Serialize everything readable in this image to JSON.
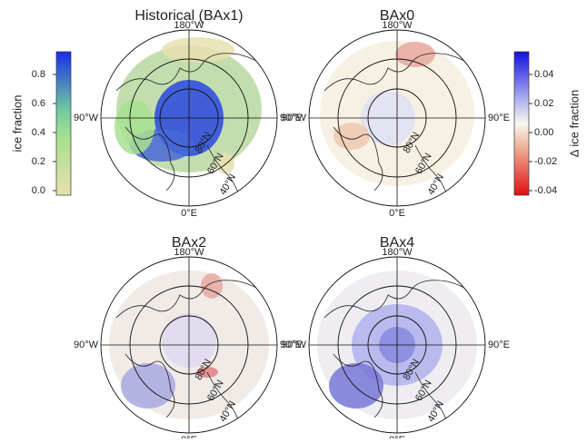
{
  "panels": [
    {
      "title": "Historical (BAx1)"
    },
    {
      "title": "BAx0"
    },
    {
      "title": "BAx2"
    },
    {
      "title": "BAx4"
    }
  ],
  "lon_labels": {
    "top": "180°W",
    "left": "90°W",
    "right": "90°E",
    "bottom": "0°E"
  },
  "lat_labels": [
    "80°N",
    "60°N",
    "40°N"
  ],
  "colorbar_left": {
    "label": "ice fraction",
    "ticks": [
      "0.8",
      "0.6",
      "0.4",
      "0.2",
      "0.0"
    ]
  },
  "colorbar_right": {
    "label": "Δ ice fraction",
    "ticks": [
      "0.04",
      "0.02",
      "0.00",
      "-0.02",
      "-0.04"
    ]
  }
}
